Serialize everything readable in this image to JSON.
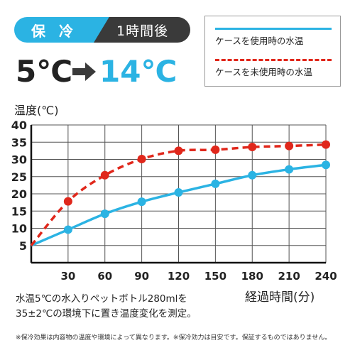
{
  "badge": {
    "left": "保 冷",
    "right": "1時間後"
  },
  "temps": {
    "from": "5℃",
    "to": "14℃"
  },
  "legend": {
    "items": [
      {
        "label": "ケースを使用時の水温",
        "color": "#2bb3e3"
      },
      {
        "label": "ケースを未使用時の水温",
        "color": "#e0271b"
      }
    ]
  },
  "colors": {
    "accent": "#2bb3e3",
    "red": "#e0271b",
    "dark": "#3a3a3a"
  },
  "chart_data": {
    "type": "line",
    "ylabel": "温度(℃)",
    "xlabel": "経過時間(分)",
    "x": [
      0,
      30,
      60,
      90,
      120,
      150,
      180,
      210,
      240
    ],
    "x_ticks": [
      "30",
      "60",
      "90",
      "120",
      "150",
      "180",
      "210",
      "240"
    ],
    "y_ticks": [
      "5",
      "10",
      "15",
      "20",
      "25",
      "30",
      "35",
      "40"
    ],
    "xlim": [
      0,
      240
    ],
    "ylim": [
      0,
      40
    ],
    "grid": true,
    "series": [
      {
        "name": "ケースを使用時の水温",
        "values": [
          5,
          9.6,
          14.2,
          17.7,
          20.4,
          22.9,
          25.4,
          27.1,
          28.4
        ],
        "style": "solid",
        "color": "#2bb3e3"
      },
      {
        "name": "ケースを未使用時の水温",
        "values": [
          5,
          17.8,
          25.4,
          30.1,
          32.5,
          32.8,
          33.6,
          33.9,
          34.3
        ],
        "style": "dashed",
        "color": "#e0271b"
      }
    ]
  },
  "notes": {
    "line1": "水温5℃の水入りペットボトル280mlを",
    "line2": "35±2℃の環境下に置き温度変化を測定。"
  },
  "footnote": "※保冷効果は内容物の温度や環境によって異なります。※保冷効力は目安です。保証するものではありません。"
}
